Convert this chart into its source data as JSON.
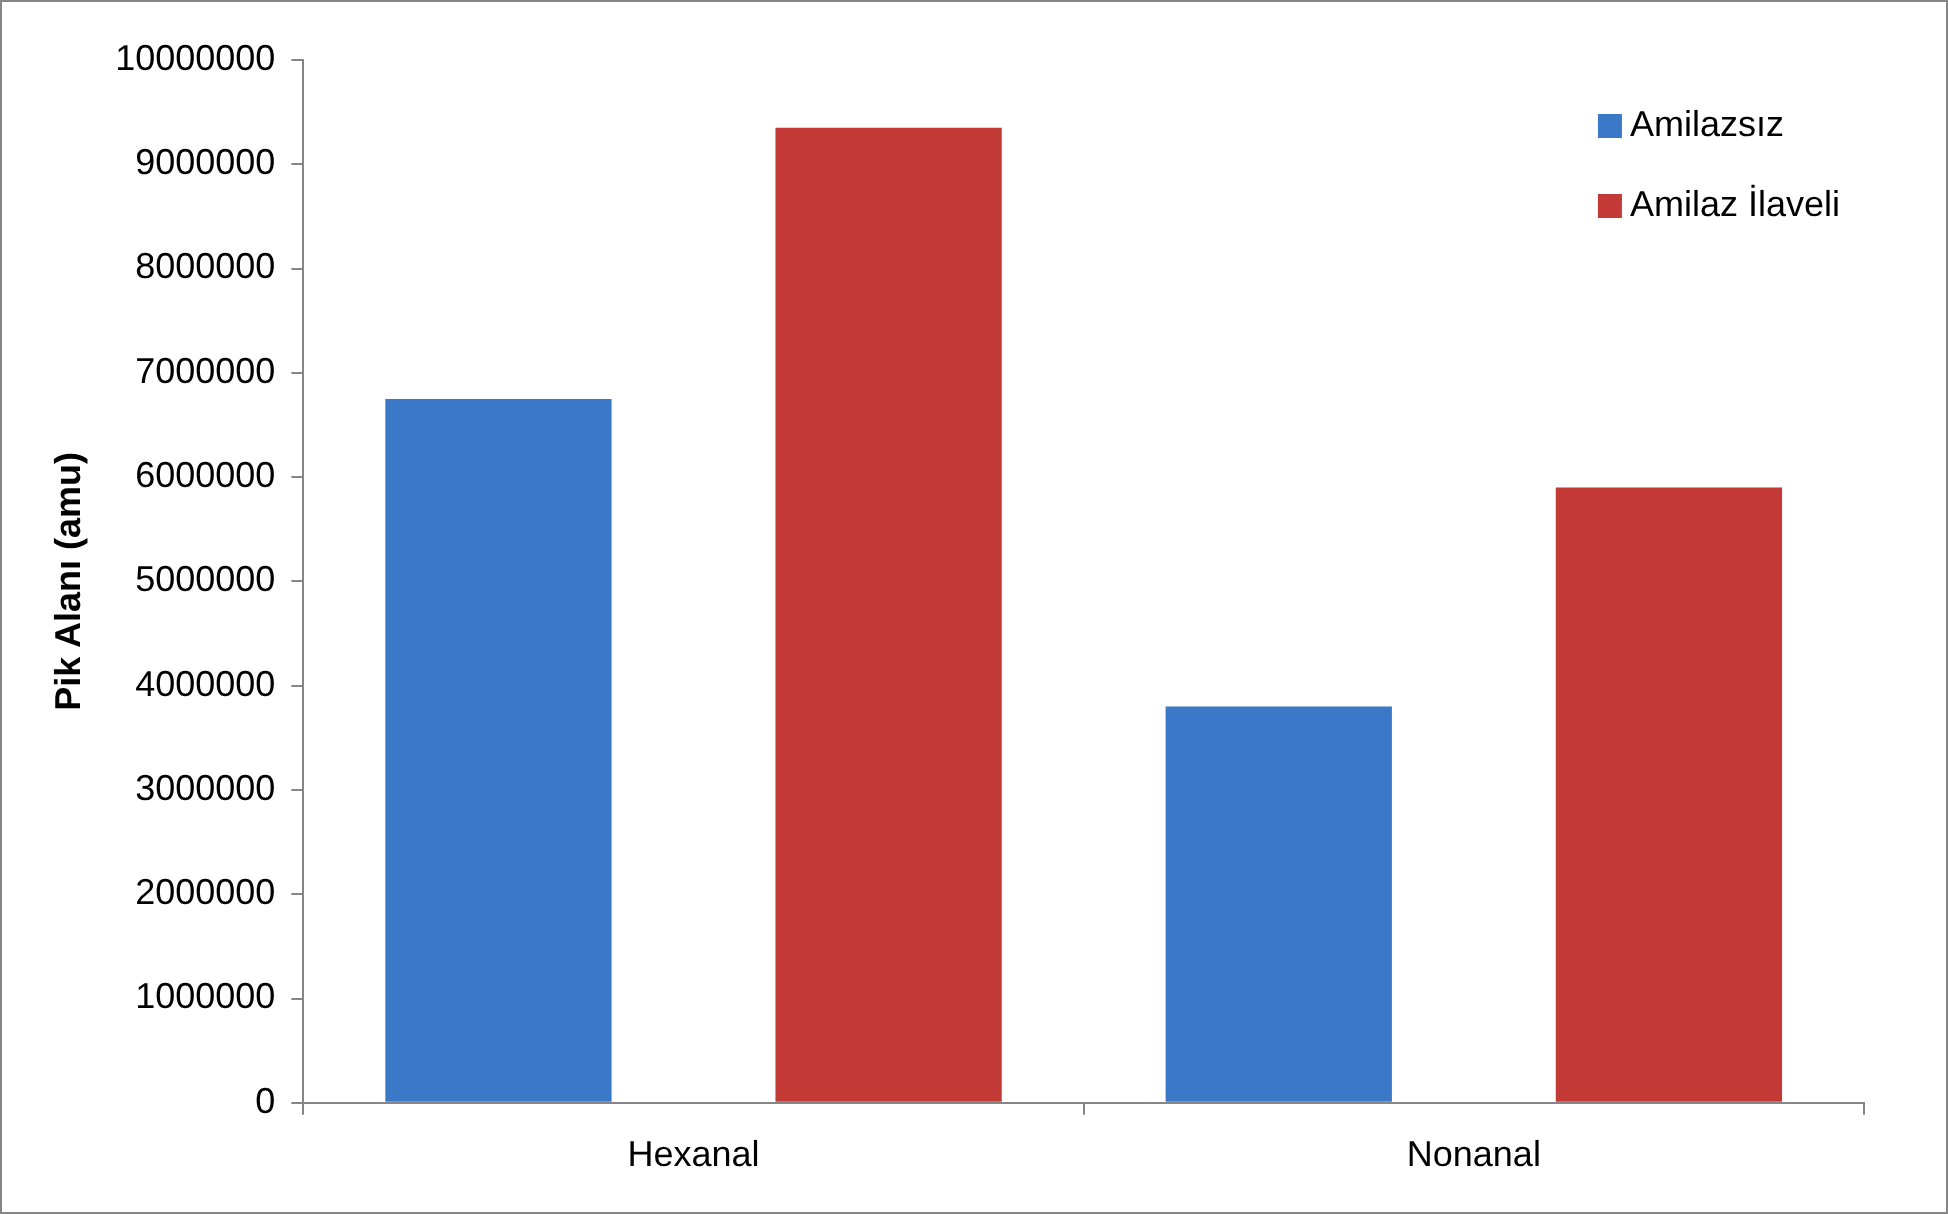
{
  "chart_data": {
    "type": "bar",
    "ylabel": "Pik Alanı (amu)",
    "categories": [
      "Hexanal",
      "Nonanal"
    ],
    "series": [
      {
        "name": "Amilazsız",
        "color": "#3b78c8",
        "values": [
          6750000,
          3800000
        ]
      },
      {
        "name": "Amilaz İlaveli",
        "color": "#c43a36",
        "values": [
          9350000,
          5900000
        ]
      }
    ],
    "ylim": [
      0,
      10000000
    ],
    "yticks": [
      0,
      1000000,
      2000000,
      3000000,
      4000000,
      5000000,
      6000000,
      7000000,
      8000000,
      9000000,
      10000000
    ],
    "grid": false,
    "legend": "top right"
  }
}
